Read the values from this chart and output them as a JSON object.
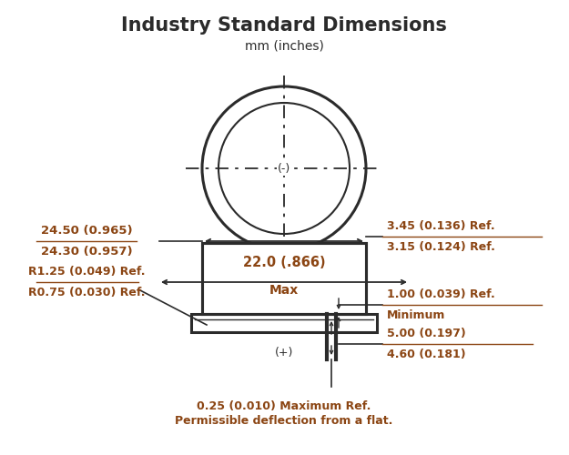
{
  "title": "Industry Standard Dimensions",
  "subtitle": "mm (inches)",
  "bg_color": "#ffffff",
  "text_color": "#2b2b2b",
  "dim_color": "#8B4513",
  "line_color": "#2b2b2b",
  "annotations": {
    "left_top_1": "24.50 (0.965)",
    "left_top_2": "24.30 (0.957)",
    "left_bot_1": "R1.25 (0.049) Ref.",
    "left_bot_2": "R0.75 (0.030) Ref.",
    "right_top_1": "3.45 (0.136) Ref.",
    "right_top_2": "3.15 (0.124) Ref.",
    "right_mid_1": "1.00 (0.039) Ref.",
    "right_mid_2": "Minimum",
    "center_1": "22.0 (.866)",
    "center_2": "Max",
    "right_bot_1": "5.00 (0.197)",
    "right_bot_2": "4.60 (0.181)",
    "bottom_1": "0.25 (0.010) Maximum Ref.",
    "bottom_2": "Permissible deflection from a flat.",
    "neg_label": "(-)",
    "pos_label": "(+)"
  }
}
